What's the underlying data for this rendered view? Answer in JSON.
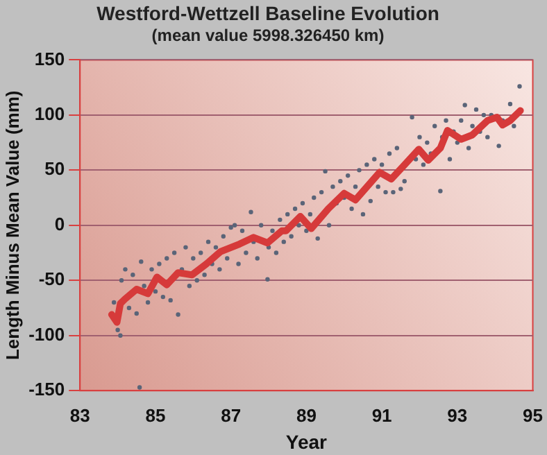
{
  "chart_data": {
    "type": "scatter",
    "title": "Westford-Wettzell Baseline Evolution",
    "subtitle": "(mean value 5998.326450 km)",
    "xlabel": "Year",
    "ylabel": "Length Minus Mean Value (mm)",
    "xlim": [
      83,
      95
    ],
    "xticks": [
      83,
      85,
      87,
      89,
      91,
      93,
      95
    ],
    "ylim": [
      -150,
      150
    ],
    "yticks": [
      -150,
      -100,
      -50,
      0,
      50,
      100,
      150
    ],
    "grid": "y",
    "legend": false,
    "series": [
      {
        "color": "#5a6478",
        "marker": "circle",
        "x": [
          83.9,
          84.0,
          84.07,
          84.1,
          84.2,
          84.3,
          84.4,
          84.5,
          84.58,
          84.62,
          84.7,
          84.8,
          84.9,
          85.0,
          85.1,
          85.2,
          85.3,
          85.4,
          85.5,
          85.6,
          85.7,
          85.8,
          85.9,
          86.0,
          86.1,
          86.2,
          86.3,
          86.4,
          86.5,
          86.6,
          86.7,
          86.8,
          86.9,
          87.0,
          87.1,
          87.2,
          87.3,
          87.4,
          87.53,
          87.6,
          87.7,
          87.8,
          87.97,
          88.0,
          88.1,
          88.2,
          88.3,
          88.4,
          88.5,
          88.6,
          88.7,
          88.8,
          88.9,
          89.0,
          89.1,
          89.2,
          89.3,
          89.4,
          89.5,
          89.6,
          89.7,
          89.8,
          89.9,
          90.0,
          90.1,
          90.2,
          90.3,
          90.4,
          90.5,
          90.6,
          90.7,
          90.8,
          90.9,
          91.0,
          91.1,
          91.2,
          91.3,
          91.4,
          91.5,
          91.6,
          91.8,
          91.9,
          92.0,
          92.1,
          92.2,
          92.3,
          92.4,
          92.55,
          92.6,
          92.7,
          92.8,
          92.9,
          93.0,
          93.1,
          93.2,
          93.3,
          93.4,
          93.5,
          93.6,
          93.7,
          93.8,
          93.9,
          94.1,
          94.2,
          94.4,
          94.5,
          94.65
        ],
        "values": [
          -70,
          -95,
          -100,
          -50,
          -40,
          -75,
          -45,
          -80,
          -147,
          -33,
          -55,
          -70,
          -40,
          -60,
          -35,
          -65,
          -30,
          -68,
          -25,
          -81,
          -40,
          -20,
          -55,
          -30,
          -50,
          -25,
          -45,
          -15,
          -35,
          -20,
          -40,
          -10,
          -30,
          -2,
          0,
          -35,
          -5,
          -25,
          12,
          -15,
          -30,
          0,
          -49,
          -20,
          -5,
          -25,
          5,
          -15,
          10,
          -10,
          15,
          0,
          20,
          -5,
          10,
          25,
          -12,
          30,
          49,
          0,
          35,
          20,
          40,
          25,
          45,
          15,
          35,
          50,
          10,
          55,
          22,
          60,
          35,
          55,
          30,
          65,
          30,
          70,
          33,
          40,
          98,
          60,
          80,
          55,
          75,
          65,
          90,
          31,
          80,
          95,
          60,
          85,
          75,
          95,
          109,
          70,
          90,
          105,
          85,
          100,
          80,
          100,
          72,
          95,
          110,
          90,
          126
        ]
      },
      {
        "type": "line",
        "color": "#d63a3a",
        "marker": "none",
        "line_style": "solid",
        "x": [
          83.84,
          83.98,
          84.07,
          84.19,
          84.5,
          84.8,
          85.04,
          85.3,
          85.6,
          85.97,
          86.35,
          86.72,
          87.23,
          87.6,
          87.97,
          88.35,
          88.46,
          88.84,
          89.13,
          89.58,
          90.0,
          90.3,
          90.94,
          91.25,
          91.55,
          91.98,
          92.23,
          92.55,
          92.74,
          93.1,
          93.4,
          93.8,
          94.05,
          94.2,
          94.4,
          94.67
        ],
        "values": [
          -81,
          -88,
          -71,
          -67,
          -58,
          -62,
          -47,
          -54,
          -43,
          -45,
          -35,
          -24,
          -17,
          -11,
          -16,
          -5,
          -5,
          8,
          -3,
          15,
          29,
          23,
          48,
          42,
          53,
          69,
          59,
          70,
          86,
          78,
          82,
          95,
          98,
          91,
          95,
          104
        ]
      }
    ]
  }
}
